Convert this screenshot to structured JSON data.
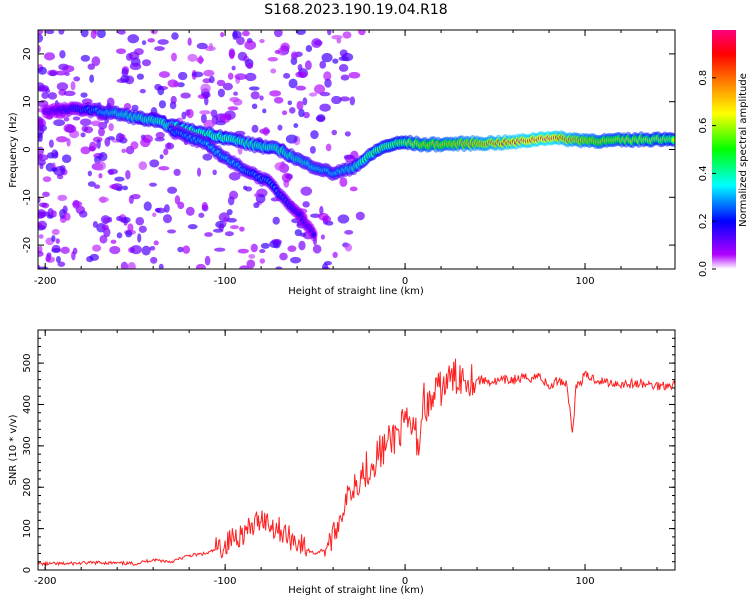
{
  "chart_data": [
    {
      "type": "heatmap",
      "title": "S168.2023.190.19.04.R18",
      "xlabel": "Height of straight line (km)",
      "ylabel": "Frequency (Hz)",
      "xlim": [
        -204,
        150
      ],
      "ylim": [
        -25,
        25
      ],
      "x_ticks": [
        "-200",
        "-100",
        "0",
        "100"
      ],
      "y_ticks": [
        "-20",
        "-10",
        "0",
        "10",
        "20"
      ],
      "colorbar": {
        "label": "Normalized spectral amplitude",
        "range": [
          0,
          1
        ],
        "ticks": [
          "0.0",
          "0.2",
          "0.4",
          "0.6",
          "0.8"
        ],
        "colors": [
          "#ffffff",
          "#b000ff",
          "#0000ff",
          "#00ffff",
          "#00ff00",
          "#ffff00",
          "#ff8000",
          "#ff0000",
          "#ff0080"
        ]
      },
      "ridges": [
        {
          "name": "main",
          "points": [
            [
              -200,
              8
            ],
            [
              -180,
              8.5
            ],
            [
              -160,
              7.5
            ],
            [
              -140,
              6
            ],
            [
              -120,
              4
            ],
            [
              -100,
              2.5
            ],
            [
              -85,
              1
            ],
            [
              -70,
              0
            ],
            [
              -55,
              -3
            ],
            [
              -40,
              -5
            ],
            [
              -30,
              -4
            ],
            [
              -22,
              -2
            ],
            [
              -15,
              0
            ],
            [
              -8,
              1
            ],
            [
              0,
              1.5
            ],
            [
              10,
              1
            ],
            [
              30,
              1.2
            ],
            [
              60,
              1.5
            ],
            [
              80,
              2.5
            ],
            [
              95,
              2
            ],
            [
              110,
              1.8
            ],
            [
              150,
              2.3
            ]
          ],
          "amplitude": [
            0.15,
            0.25,
            0.4,
            0.45,
            0.5,
            0.5,
            0.45,
            0.45,
            0.4,
            0.35,
            0.4,
            0.5,
            0.55,
            0.55,
            0.6,
            0.7,
            0.75,
            0.9,
            0.95,
            0.8,
            0.7,
            0.6
          ]
        },
        {
          "name": "lower-branch",
          "points": [
            [
              -130,
              4
            ],
            [
              -110,
              1
            ],
            [
              -95,
              -3
            ],
            [
              -85,
              -5
            ],
            [
              -75,
              -7
            ],
            [
              -68,
              -10
            ],
            [
              -60,
              -13
            ],
            [
              -50,
              -18
            ]
          ],
          "amplitude": [
            0.3,
            0.35,
            0.35,
            0.3,
            0.3,
            0.25,
            0.2,
            0.15
          ]
        }
      ]
    },
    {
      "type": "line",
      "xlabel": "Height of straight line (km)",
      "ylabel": "SNR (10 * v/v)",
      "xlim": [
        -204,
        150
      ],
      "ylim": [
        0,
        580
      ],
      "x_ticks": [
        "-200",
        "-100",
        "0",
        "100"
      ],
      "y_ticks": [
        "0",
        "100",
        "200",
        "300",
        "400",
        "500"
      ],
      "color": "#ff2020",
      "x": [
        -204,
        -190,
        -170,
        -150,
        -140,
        -130,
        -120,
        -110,
        -100,
        -95,
        -90,
        -85,
        -80,
        -75,
        -70,
        -65,
        -60,
        -55,
        -50,
        -45,
        -40,
        -35,
        -30,
        -25,
        -20,
        -15,
        -10,
        -5,
        0,
        5,
        8,
        10,
        13,
        16,
        20,
        25,
        30,
        40,
        50,
        60,
        70,
        75,
        80,
        85,
        90,
        93,
        95,
        100,
        110,
        120,
        130,
        140,
        150
      ],
      "y": [
        15,
        15,
        18,
        15,
        25,
        20,
        35,
        40,
        60,
        80,
        90,
        100,
        130,
        110,
        100,
        80,
        70,
        50,
        40,
        50,
        80,
        140,
        200,
        230,
        250,
        280,
        300,
        330,
        350,
        340,
        300,
        420,
        390,
        420,
        440,
        460,
        470,
        460,
        455,
        460,
        465,
        470,
        440,
        460,
        450,
        330,
        440,
        470,
        455,
        450,
        450,
        445,
        450
      ]
    }
  ]
}
